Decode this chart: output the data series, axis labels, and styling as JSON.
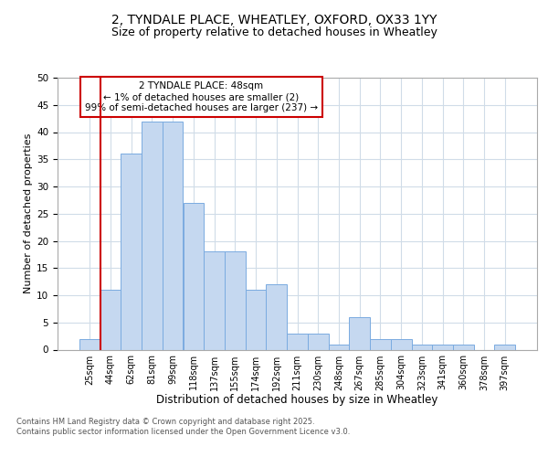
{
  "title1": "2, TYNDALE PLACE, WHEATLEY, OXFORD, OX33 1YY",
  "title2": "Size of property relative to detached houses in Wheatley",
  "xlabel": "Distribution of detached houses by size in Wheatley",
  "ylabel": "Number of detached properties",
  "categories": [
    "25sqm",
    "44sqm",
    "62sqm",
    "81sqm",
    "99sqm",
    "118sqm",
    "137sqm",
    "155sqm",
    "174sqm",
    "192sqm",
    "211sqm",
    "230sqm",
    "248sqm",
    "267sqm",
    "285sqm",
    "304sqm",
    "323sqm",
    "341sqm",
    "360sqm",
    "378sqm",
    "397sqm"
  ],
  "values": [
    2,
    11,
    36,
    42,
    42,
    27,
    18,
    18,
    11,
    12,
    3,
    3,
    1,
    6,
    2,
    2,
    1,
    1,
    1,
    0,
    1
  ],
  "bar_color": "#c5d8f0",
  "bar_edge_color": "#7aabe0",
  "vline_color": "#cc0000",
  "vline_x_index": 1,
  "annotation_title": "2 TYNDALE PLACE: 48sqm",
  "annotation_line1": "← 1% of detached houses are smaller (2)",
  "annotation_line2": "99% of semi-detached houses are larger (237) →",
  "annotation_box_color": "#cc0000",
  "ylim": [
    0,
    50
  ],
  "yticks": [
    0,
    5,
    10,
    15,
    20,
    25,
    30,
    35,
    40,
    45,
    50
  ],
  "footer": "Contains HM Land Registry data © Crown copyright and database right 2025.\nContains public sector information licensed under the Open Government Licence v3.0.",
  "title_fontsize": 10,
  "subtitle_fontsize": 9,
  "tick_fontsize": 7,
  "xlabel_fontsize": 8.5,
  "ylabel_fontsize": 8,
  "annotation_fontsize": 7.5,
  "footer_fontsize": 6
}
